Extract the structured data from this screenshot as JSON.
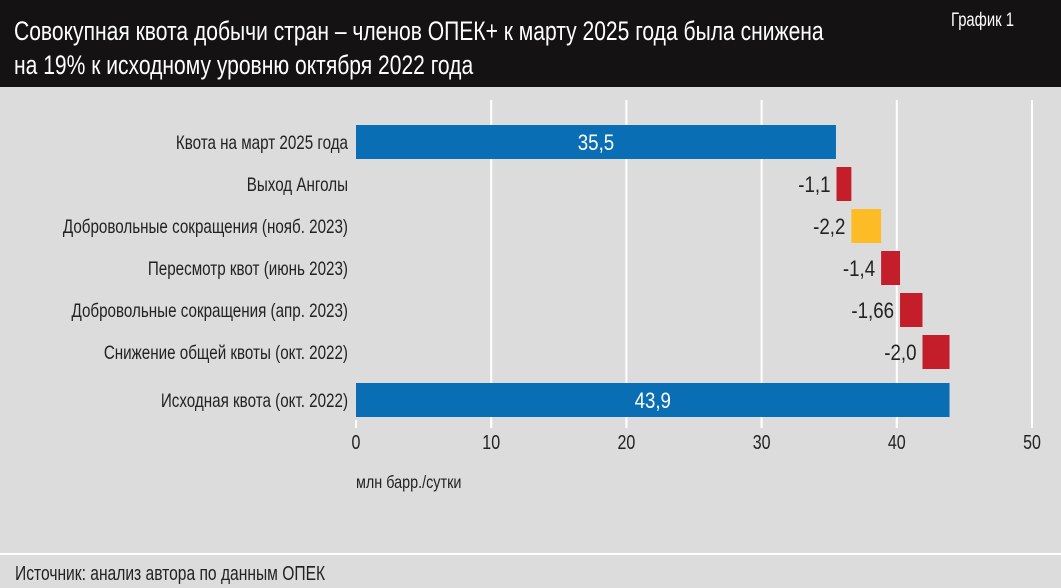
{
  "header": {
    "title_line1": "Совокупная квота добычи стран – членов ОПЕК+ к марту 2025 года была снижена",
    "title_line2": "на 19% к исходному уровню октября 2022 года",
    "badge": "График 1"
  },
  "footer": {
    "source": "Источник: анализ автора по данным ОПЕК"
  },
  "colors": {
    "total": "#0a6eb4",
    "decrease": "#c41e2a",
    "highlight": "#fdbb26",
    "background": "#dcdcdd",
    "header": "#141212"
  },
  "chart_data": {
    "type": "bar",
    "subtype": "waterfall-horizontal",
    "xlabel": "млн барр./сутки",
    "xlim": [
      0,
      50
    ],
    "xticks": [
      0,
      10,
      20,
      30,
      40,
      50
    ],
    "grid": true,
    "categories": [
      "Квота на март 2025 года",
      "Выход Анголы",
      "Добровольные сокращения (нояб. 2023)",
      "Пересмотр квот (июнь 2023)",
      "Добровольные сокращения (апр. 2023)",
      "Снижение общей квоты (окт. 2022)",
      "Исходная квота (окт. 2022)"
    ],
    "values": [
      35.5,
      -1.1,
      -2.2,
      -1.4,
      -1.66,
      -2.0,
      43.9
    ],
    "labels": [
      "35,5",
      "-1,1",
      "-2,2",
      "-1,4",
      "-1,66",
      "-2,0",
      "43,9"
    ],
    "kinds": [
      "total",
      "decrease",
      "highlight",
      "decrease",
      "decrease",
      "decrease",
      "total"
    ]
  }
}
